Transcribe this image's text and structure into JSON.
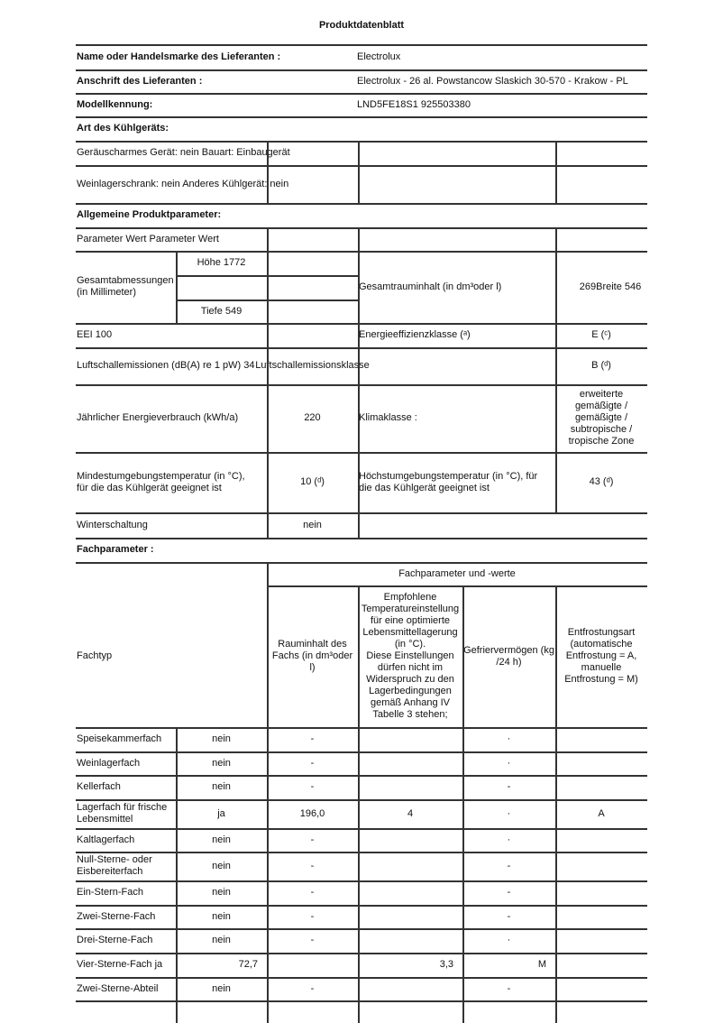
{
  "title": "Produktdatenblatt",
  "supplier": {
    "name_label": "Name oder Handelsmarke des Lieferanten :",
    "name_value": "Electrolux",
    "address_label": "Anschrift des Lieferanten :",
    "address_value": "Electrolux - 26 al. Powstancow Slaskich 30-570 - Krakow - PL",
    "model_label": "Modellkennung:",
    "model_value": "LND5FE18S1 925503380"
  },
  "appliance_type": {
    "heading": "Art des Kühlgeräts:",
    "row1": "Geräuscharmes Gerät: nein Bauart: Einbaugerät",
    "row2": "Weinlagerschrank: nein Anderes Kühlgerät: nein"
  },
  "general": {
    "heading": "Allgemeine Produktparameter:",
    "header_row": "Parameter Wert Parameter Wert",
    "dims_label": "Gesamtabmessungen\n(in Millimeter)",
    "height": "Höhe 1772",
    "depth": "Tiefe 549",
    "total_volume_label": "Gesamtrauminhalt (in dm³oder l)",
    "total_volume_value": "269Breite 546",
    "eei": "EEI 100",
    "energy_class_label": "Energieeffizienzklasse (ᵃ)",
    "energy_class_value": "E (ᶜ)",
    "noise_label": "Luftschallemissionen (dB(A) re 1 pW) 34",
    "noise_class_label": "Luftschallemissionsklasse",
    "noise_class_value": "B (ᵈ)",
    "annual_label": "Jährlicher Energieverbrauch (kWh/a)",
    "annual_value": "220",
    "climate_label": "Klimaklasse :",
    "climate_value": "erweiterte\ngemäßigte /\ngemäßigte /\nsubtropische /\ntropische Zone",
    "min_temp_label": "Mindestumgebungstemperatur (in °C),\nfür die das Kühlgerät geeignet ist",
    "min_temp_value": "10 (ᵈ)",
    "max_temp_label": "Höchstumgebungstemperatur (in °C), für\ndie das Kühlgerät geeignet ist",
    "max_temp_value": "43 (ᵈ)",
    "winter_label": "Winterschaltung",
    "winter_value": "nein"
  },
  "compartments": {
    "heading": "Fachparameter :",
    "group_header": "Fachparameter und -werte",
    "type_header": "Fachtyp",
    "headers": [
      "Rauminhalt des\nFachs (in dm³oder\nl)",
      "Empfohlene\nTemperatureinstellung\nfür eine optimierte\nLebensmittellagerung\n(in °C).\nDiese Einstellungen\ndürfen nicht im\nWiderspruch zu den\nLagerbedingungen\ngemäß Anhang IV\nTabelle 3 stehen;",
      "Gefriervermögen (kg\n/24 h)",
      "Entfrostungsart\n(automatische\nEntfrostung = A,\nmanuelle\nEntfrostung = M)"
    ],
    "rows": [
      {
        "name": "Speisekammerfach",
        "available": "nein",
        "volume": "-",
        "temperature": "",
        "freezing": "·",
        "defrost": ""
      },
      {
        "name": "Weinlagerfach",
        "available": "nein",
        "volume": "-",
        "temperature": "",
        "freezing": "·",
        "defrost": ""
      },
      {
        "name": "Kellerfach",
        "available": "nein",
        "volume": "-",
        "temperature": "",
        "freezing": "-",
        "defrost": ""
      },
      {
        "name": "Lagerfach für frische\nLebensmittel",
        "available": "ja",
        "volume": "196,0",
        "temperature": "4",
        "freezing": "·",
        "defrost": "A"
      },
      {
        "name": "Kaltlagerfach",
        "available": "nein",
        "volume": "-",
        "temperature": "",
        "freezing": "·",
        "defrost": ""
      },
      {
        "name": "Null-Sterne- oder\nEisbereiterfach",
        "available": "nein",
        "volume": "-",
        "temperature": "",
        "freezing": "-",
        "defrost": ""
      },
      {
        "name": "Ein-Stern-Fach",
        "available": "nein",
        "volume": "-",
        "temperature": "",
        "freezing": "-",
        "defrost": ""
      },
      {
        "name": "Zwei-Sterne-Fach",
        "available": "nein",
        "volume": "-",
        "temperature": "",
        "freezing": "-",
        "defrost": ""
      },
      {
        "name": "Drei-Sterne-Fach",
        "available": "nein",
        "volume": "-",
        "temperature": "",
        "freezing": "·",
        "defrost": ""
      },
      {
        "name": "Vier-Sterne-Fach ja",
        "available": "72,7",
        "volume": "",
        "temperature": "3,3",
        "freezing": "M",
        "defrost": ""
      },
      {
        "name": "Zwei-Sterne-Abteil",
        "available": "nein",
        "volume": "-",
        "temperature": "",
        "freezing": "-",
        "defrost": ""
      }
    ]
  }
}
